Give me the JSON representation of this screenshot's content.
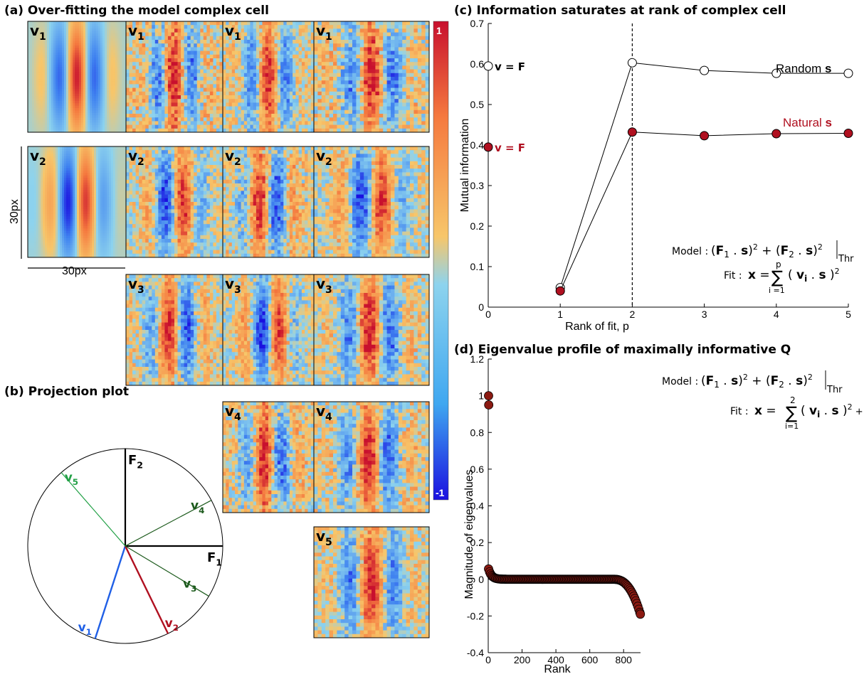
{
  "panels": {
    "a": {
      "title": "(a) Over-fitting the model complex cell"
    },
    "b": {
      "title": "(b) Projection plot"
    },
    "c": {
      "title": "(c)   Information saturates at rank of complex cell"
    },
    "d": {
      "title": "(d)   Eigenvalue profile of maximally informative Q"
    }
  },
  "colorbar": {
    "top_label": "1",
    "bottom_label": "-1",
    "colors": [
      "#1a10e0",
      "#3fa7f0",
      "#8dd3ee",
      "#f7c66a",
      "#f57a3f",
      "#c8102e"
    ]
  },
  "scale": {
    "vertical": "30px",
    "horizontal": "30px"
  },
  "filters": {
    "rows": [
      {
        "label_base": "v",
        "label_sub": "1",
        "tiles": [
          {
            "type": "ideal",
            "sign": 1,
            "freq": 1.05,
            "noise": 0.0,
            "bg": 0.0
          },
          {
            "type": "fit",
            "sign": 1,
            "freq": 1.1,
            "noise": 0.55,
            "bg": 0.3
          },
          {
            "type": "fit",
            "sign": 1,
            "freq": 1.0,
            "noise": 0.5,
            "bg": 0.15
          },
          {
            "type": "fit",
            "sign": 1,
            "freq": 1.05,
            "noise": 0.55,
            "bg": 0.3
          }
        ]
      },
      {
        "label_base": "v",
        "label_sub": "2",
        "tiles": [
          {
            "type": "ideal",
            "sign": -1,
            "freq": 1.05,
            "noise": 0.0,
            "bg": 0.0,
            "phase": 1.57
          },
          {
            "type": "fit",
            "sign": -1,
            "freq": 1.0,
            "noise": 0.5,
            "bg": 0.1,
            "phase": 1.57
          },
          {
            "type": "fit",
            "sign": 1,
            "freq": 1.0,
            "noise": 0.5,
            "bg": 0.25,
            "phase": 1.57
          },
          {
            "type": "fit",
            "sign": -1,
            "freq": 1.05,
            "noise": 0.5,
            "bg": 0.1,
            "phase": 1.57
          }
        ]
      },
      {
        "label_base": "v",
        "label_sub": "3",
        "tiles": [
          {
            "type": "fit",
            "sign": 1,
            "freq": 1.0,
            "noise": 0.5,
            "bg": 0.15,
            "phase": 1.0
          },
          {
            "type": "fit",
            "sign": -1,
            "freq": 1.0,
            "noise": 0.5,
            "bg": 0.1,
            "phase": 1.2
          },
          {
            "type": "fit",
            "sign": 1,
            "freq": 1.05,
            "noise": 0.55,
            "bg": 0.15,
            "phase": 0.3
          }
        ]
      },
      {
        "label_base": "v",
        "label_sub": "4",
        "tiles": [
          {
            "type": "fit",
            "sign": 1,
            "freq": 1.0,
            "noise": 0.45,
            "bg": 0.35,
            "phase": 0.8
          },
          {
            "type": "fit",
            "sign": 1,
            "freq": 1.05,
            "noise": 0.55,
            "bg": 0.2,
            "phase": 0.5
          }
        ]
      },
      {
        "label_base": "v",
        "label_sub": "5",
        "tiles": [
          {
            "type": "fit",
            "sign": 1,
            "freq": 1.0,
            "noise": 0.5,
            "bg": 0.15,
            "phase": 0.0
          }
        ]
      }
    ]
  },
  "projection": {
    "axes": [
      {
        "label_base": "F",
        "label_sub": "2",
        "angle_deg": 90
      },
      {
        "label_base": "F",
        "label_sub": "1",
        "angle_deg": 0
      }
    ],
    "vectors": [
      {
        "label_base": "v",
        "label_sub": "1",
        "angle_deg": -108,
        "color": "#1f5fe6"
      },
      {
        "label_base": "v",
        "label_sub": "2",
        "angle_deg": -64,
        "color": "#b01020"
      },
      {
        "label_base": "v",
        "label_sub": "3",
        "angle_deg": -31,
        "color": "#1c5a1c"
      },
      {
        "label_base": "v",
        "label_sub": "4",
        "angle_deg": 28,
        "color": "#1c5a1c"
      },
      {
        "label_base": "v",
        "label_sub": "5",
        "angle_deg": 131,
        "color": "#22a046"
      }
    ]
  },
  "chart_data": [
    {
      "id": "c",
      "type": "line",
      "xlabel": "Rank of fit, p",
      "ylabel": "Mutual information",
      "xlim": [
        0,
        5
      ],
      "ylim": [
        0,
        0.7
      ],
      "xticks": [
        "0",
        "1",
        "2",
        "3",
        "4",
        "5"
      ],
      "yticks": [
        "0",
        "0.1",
        "0.2",
        "0.3",
        "0.4",
        "0.5",
        "0.6",
        "0.7"
      ],
      "vline_x": 2,
      "series": [
        {
          "name": "Random s",
          "style": "open",
          "x": [
            1,
            2,
            3,
            4,
            5
          ],
          "y": [
            0.048,
            0.603,
            0.584,
            0.577,
            0.577
          ],
          "ref_label": "v = F",
          "ref_y": 0.595
        },
        {
          "name": "Natural s",
          "style": "filled",
          "color": "#b01020",
          "x": [
            1,
            2,
            3,
            4,
            5
          ],
          "y": [
            0.04,
            0.432,
            0.423,
            0.428,
            0.429
          ],
          "ref_label": "v = F",
          "ref_y": 0.395
        }
      ],
      "legend": [
        {
          "text_base": "Random ",
          "text_bold": "s",
          "color": "#000000"
        },
        {
          "text_base": "Natural ",
          "text_bold": "s",
          "color": "#b01020"
        }
      ],
      "model_label": "Model :",
      "fit_label": "Fit :"
    },
    {
      "id": "d",
      "type": "scatter",
      "xlabel": "Rank",
      "ylabel": "Magnitude of eigenvalues",
      "xlim": [
        0,
        900
      ],
      "ylim": [
        -0.4,
        1.2
      ],
      "xticks": [
        "0",
        "200",
        "400",
        "600",
        "800"
      ],
      "yticks": [
        "-0.4",
        "-0.2",
        "0",
        "0.2",
        "0.4",
        "0.6",
        "0.8",
        "1",
        "1.2"
      ],
      "top_eigenvalues": [
        1.0,
        0.95
      ],
      "n_points": 900,
      "bulk_level": 0.0,
      "first_small": 0.056,
      "last_value": -0.19,
      "model_label": "Model :",
      "fit_label": "Fit :"
    }
  ]
}
